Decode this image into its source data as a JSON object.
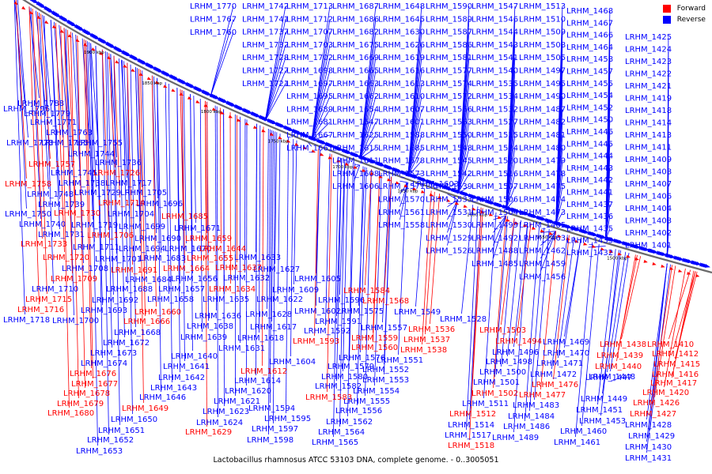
{
  "legend": {
    "forward_label": "Forward",
    "reverse_label": "Reverse",
    "forward_color": "#ff0000",
    "reverse_color": "#0000ff"
  },
  "caption": "Lactobacillus rhamnosus ATCC 53103 DNA, complete genome. - 0..3005051",
  "scale_labels": [
    "1900 kbp",
    "1850 kbp",
    "1800 kbp",
    "1750 kbp",
    "1700 kbp",
    "1650 kbp",
    "1600 kbp",
    "1550 kbp",
    "1500 kbp"
  ],
  "reverse_genes": [
    "LRHM_1770",
    "LRHM_1742",
    "LRHM_1713",
    "LRHM_1687",
    "LRHM_1648",
    "LRHM_1590",
    "LRHM_1547",
    "LRHM_1513",
    "LRHM_1468",
    "LRHM_1767",
    "LRHM_1741",
    "LRHM_1712",
    "LRHM_1686",
    "LRHM_1645",
    "LRHM_1589",
    "LRHM_1546",
    "LRHM_1510",
    "LRHM_1467",
    "LRHM_1760",
    "LRHM_1737",
    "LRHM_1707",
    "LRHM_1682",
    "LRHM_1630",
    "LRHM_1587",
    "LRHM_1544",
    "LRHM_1509",
    "LRHM_1466",
    "LRHM_1732",
    "LRHM_1703",
    "LRHM_1675",
    "LRHM_1626",
    "LRHM_1586",
    "LRHM_1543",
    "LRHM_1508",
    "LRHM_1464",
    "LRHM_1425",
    "LRHM_1728",
    "LRHM_1702",
    "LRHM_1669",
    "LRHM_1619",
    "LRHM_1581",
    "LRHM_1541",
    "LRHM_1505",
    "LRHM_1458",
    "LRHM_1424",
    "LRHM_1727",
    "LRHM_1698",
    "LRHM_1665",
    "LRHM_1616",
    "LRHM_1577",
    "LRHM_1540",
    "LRHM_1497",
    "LRHM_1457",
    "LRHM_1423",
    "LRHM_1721",
    "LRHM_1697",
    "LRHM_1663",
    "LRHM_1613",
    "LRHM_1574",
    "LRHM_1535",
    "LRHM_1495",
    "LRHM_1455",
    "LRHM_1422",
    "LRHM_1695",
    "LRHM_1662",
    "LRHM_1610",
    "LRHM_1572",
    "LRHM_1534",
    "LRHM_1490",
    "LRHM_1454",
    "LRHM_1421",
    "LRHM_1796",
    "LRHM_1689",
    "LRHM_1654",
    "LRHM_1607",
    "LRHM_1566",
    "LRHM_1532",
    "LRHM_1487",
    "LRHM_1452",
    "LRHM_1419",
    "LRHM_1788",
    "LRHM_1681",
    "LRHM_1647",
    "LRHM_1601",
    "LRHM_1563",
    "LRHM_1527",
    "LRHM_1482",
    "LRHM_1450",
    "LRHM_1418",
    "LRHM_1779",
    "LRHM_1667",
    "LRHM_1625",
    "LRHM_1588",
    "LRHM_1550",
    "LRHM_1525",
    "LRHM_1481",
    "LRHM_1446",
    "LRHM_1414",
    "LRHM_1771",
    "LRHM_1661",
    "LRHM_1615",
    "LRHM_1585",
    "LRHM_1548",
    "LRHM_1524",
    "LRHM_1480",
    "LRHM_1445",
    "LRHM_1413",
    "LRHM_1763",
    "LRHM_1611",
    "LRHM_1578",
    "LRHM_1545",
    "LRHM_1520",
    "LRHM_1479",
    "LRHM_1444",
    "LRHM_1411",
    "LRHM_1773",
    "LRHM_1765",
    "LRHM_1755",
    "LRHM_1608",
    "LRHM_1573",
    "LRHM_1542",
    "LRHM_1516",
    "LRHM_1478",
    "LRHM_1443",
    "LRHM_1409",
    "LRHM_1744",
    "LRHM_1606",
    "LRHM_1571",
    "LRHM_1539",
    "LRHM_1507",
    "LRHM_1475",
    "LRHM_1442",
    "LRHM_1408",
    "LRHM_1736",
    "LRHM_1570",
    "LRHM_1533",
    "LRHM_1506",
    "LRHM_1474",
    "LRHM_1441",
    "LRHM_1407",
    "LRHM_1745",
    "LRHM_1561",
    "LRHM_1531",
    "LRHM_1504",
    "LRHM_1473",
    "LRHM_1437",
    "LRHM_1406",
    "LRHM_1738",
    "LRHM_1717",
    "LRHM_1558",
    "LRHM_1530",
    "LRHM_1499",
    "LRHM_1465",
    "LRHM_1436",
    "LRHM_1404",
    "LRHM_1748",
    "LRHM_1729",
    "LRHM_1705",
    "LRHM_1529",
    "LRHM_1492",
    "LRHM_1463",
    "LRHM_1435",
    "LRHM_1403",
    "LRHM_1739",
    "LRHM_1696",
    "LRHM_1526",
    "LRHM_1488",
    "LRHM_1462",
    "LRHM_1433",
    "LRHM_1402",
    "LRHM_1750",
    "LRHM_1704",
    "LRHM_1485",
    "LRHM_1459",
    "LRHM_1432",
    "LRHM_1401",
    "LRHM_1740",
    "LRHM_1719",
    "LRHM_1699",
    "LRHM_1456",
    "LRHM_1731",
    "LRHM_1690",
    "LRHM_1671",
    "LRHM_1711",
    "LRHM_1694",
    "LRHM_1670",
    "LRHM_1701",
    "LRHM_1683",
    "LRHM_1633",
    "LRHM_1708",
    "LRHM_1627",
    "LRHM_1605",
    "LRHM_1684",
    "LRHM_1656",
    "LRHM_1632",
    "LRHM_1609",
    "LRHM_1710",
    "LRHM_1688",
    "LRHM_1657",
    "LRHM_1596",
    "LRHM_1692",
    "LRHM_1658",
    "LRHM_1635",
    "LRHM_1622",
    "LRHM_1575",
    "LRHM_1549",
    "LRHM_1693",
    "LRHM_1602",
    "LRHM_1528",
    "LRHM_1718",
    "LRHM_1700",
    "LRHM_1636",
    "LRHM_1628",
    "LRHM_1591",
    "LRHM_1638",
    "LRHM_1617",
    "LRHM_1592",
    "LRHM_1557",
    "LRHM_1668",
    "LRHM_1639",
    "LRHM_1618",
    "LRHM_1469",
    "LRHM_1672",
    "LRHM_1603",
    "LRHM_1552",
    "LRHM_1496",
    "LRHM_1470",
    "LRHM_1673",
    "LRHM_1640",
    "LRHM_1631",
    "LRHM_1604",
    "LRHM_1576",
    "LRHM_1551",
    "LRHM_1498",
    "LRHM_1471",
    "LRHM_1674",
    "LRHM_1641",
    "LRHM_1579",
    "LRHM_1500",
    "LRHM_1472",
    "LRHM_1448",
    "LRHM_1642",
    "LRHM_1614",
    "LRHM_1580",
    "LRHM_1553",
    "LRHM_1501",
    "LRHM_1447",
    "LRHM_1643",
    "LRHM_1620",
    "LRHM_1582",
    "LRHM_1554",
    "LRHM_1483",
    "LRHM_1449",
    "LRHM_1646",
    "LRHM_1621",
    "LRHM_1555",
    "LRHM_1511",
    "LRHM_1484",
    "LRHM_1451",
    "LRHM_1428",
    "LRHM_1650",
    "LRHM_1623",
    "LRHM_1594",
    "LRHM_1556",
    "LRHM_1514",
    "LRHM_1486",
    "LRHM_1453",
    "LRHM_1429",
    "LRHM_1651",
    "LRHM_1624",
    "LRHM_1595",
    "LRHM_1562",
    "LRHM_1489",
    "LRHM_1460",
    "LRHM_1430",
    "LRHM_1652",
    "LRHM_1597",
    "LRHM_1564",
    "LRHM_1517",
    "LRHM_1461",
    "LRHM_1431",
    "LRHM_1653",
    "LRHM_1598",
    "LRHM_1565"
  ],
  "forward_genes": [
    "LRHM_1757",
    "LRHM_1726",
    "LRHM_1758",
    "LRHM_1714",
    "LRHM_1730",
    "LRHM_1685",
    "LRHM_1706",
    "LRHM_1659",
    "LRHM_1733",
    "LRHM_1644",
    "LRHM_1720",
    "LRHM_1655",
    "LRHM_1691",
    "LRHM_1664",
    "LRHM_1637",
    "LRHM_1709",
    "LRHM_1634",
    "LRHM_1584",
    "LRHM_1715",
    "LRHM_1568",
    "LRHM_1716",
    "LRHM_1660",
    "LRHM_1666",
    "LRHM_1536",
    "LRHM_1503",
    "LRHM_1559",
    "LRHM_1537",
    "LRHM_1593",
    "LRHM_1494",
    "LRHM_1438",
    "LRHM_1410",
    "LRHM_1560",
    "LRHM_1538",
    "LRHM_1439",
    "LRHM_1412",
    "LRHM_1440",
    "LRHM_1415",
    "LRHM_1676",
    "LRHM_1612",
    "LRHM_1476",
    "LRHM_1416",
    "LRHM_1677",
    "LRHM_1502",
    "LRHM_1477",
    "LRHM_1417",
    "LRHM_1678",
    "LRHM_1583",
    "LRHM_1420",
    "LRHM_1679",
    "LRHM_1426",
    "LRHM_1649",
    "LRHM_1680",
    "LRHM_1512",
    "LRHM_1427",
    "LRHM_1629",
    "LRHM_1518"
  ]
}
